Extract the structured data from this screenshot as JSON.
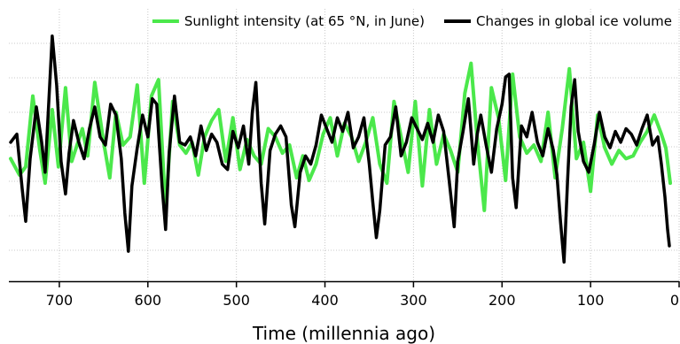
{
  "chart_data": {
    "type": "line",
    "xlabel": "Time (millennia ago)",
    "xlim": [
      757,
      0
    ],
    "ylim": [
      0,
      10
    ],
    "x_ticks": [
      700,
      600,
      500,
      400,
      300,
      200,
      100,
      0
    ],
    "x_tick_labels": [
      "700",
      "600",
      "500",
      "400",
      "300",
      "200",
      "100",
      "0"
    ],
    "grid": {
      "horizontal": true,
      "vertical": true,
      "style": "dotted"
    },
    "legend": {
      "position": "top-right"
    },
    "series": [
      {
        "name": "Sunlight intensity (at 65 °N, in June)",
        "color": "#4be84b",
        "points": [
          [
            755,
            4.5
          ],
          [
            745,
            3.9
          ],
          [
            738,
            4.2
          ],
          [
            730,
            6.8
          ],
          [
            722,
            4.8
          ],
          [
            716,
            3.6
          ],
          [
            708,
            6.3
          ],
          [
            701,
            4.2
          ],
          [
            693,
            7.1
          ],
          [
            686,
            4.4
          ],
          [
            680,
            5.0
          ],
          [
            674,
            5.6
          ],
          [
            668,
            4.6
          ],
          [
            660,
            7.3
          ],
          [
            650,
            5.1
          ],
          [
            643,
            3.8
          ],
          [
            636,
            6.2
          ],
          [
            628,
            5.0
          ],
          [
            620,
            5.3
          ],
          [
            612,
            7.2
          ],
          [
            604,
            3.6
          ],
          [
            596,
            6.8
          ],
          [
            588,
            7.4
          ],
          [
            580,
            2.6
          ],
          [
            572,
            6.6
          ],
          [
            564,
            5.0
          ],
          [
            557,
            4.7
          ],
          [
            550,
            5.1
          ],
          [
            543,
            3.9
          ],
          [
            536,
            5.3
          ],
          [
            528,
            5.9
          ],
          [
            520,
            6.3
          ],
          [
            512,
            4.4
          ],
          [
            504,
            6.0
          ],
          [
            496,
            4.1
          ],
          [
            488,
            5.2
          ],
          [
            480,
            4.6
          ],
          [
            472,
            4.3
          ],
          [
            464,
            5.6
          ],
          [
            456,
            5.3
          ],
          [
            448,
            4.7
          ],
          [
            440,
            5.0
          ],
          [
            432,
            3.8
          ],
          [
            425,
            4.6
          ],
          [
            418,
            3.7
          ],
          [
            410,
            4.3
          ],
          [
            402,
            5.4
          ],
          [
            394,
            6.0
          ],
          [
            386,
            4.6
          ],
          [
            378,
            5.8
          ],
          [
            370,
            5.3
          ],
          [
            362,
            4.4
          ],
          [
            354,
            5.1
          ],
          [
            346,
            6.0
          ],
          [
            338,
            4.3
          ],
          [
            330,
            3.6
          ],
          [
            322,
            6.6
          ],
          [
            314,
            5.3
          ],
          [
            306,
            4.0
          ],
          [
            298,
            6.6
          ],
          [
            290,
            3.5
          ],
          [
            282,
            6.3
          ],
          [
            274,
            4.3
          ],
          [
            266,
            5.4
          ],
          [
            258,
            4.8
          ],
          [
            250,
            4.0
          ],
          [
            242,
            6.9
          ],
          [
            235,
            8.0
          ],
          [
            228,
            5.2
          ],
          [
            220,
            2.6
          ],
          [
            212,
            7.1
          ],
          [
            204,
            6.0
          ],
          [
            196,
            3.7
          ],
          [
            188,
            7.6
          ],
          [
            180,
            5.3
          ],
          [
            172,
            4.7
          ],
          [
            164,
            5.0
          ],
          [
            156,
            4.4
          ],
          [
            148,
            6.2
          ],
          [
            140,
            3.8
          ],
          [
            132,
            5.6
          ],
          [
            124,
            7.8
          ],
          [
            116,
            4.5
          ],
          [
            108,
            5.1
          ],
          [
            100,
            3.3
          ],
          [
            92,
            6.1
          ],
          [
            84,
            4.9
          ],
          [
            76,
            4.3
          ],
          [
            68,
            4.8
          ],
          [
            60,
            4.5
          ],
          [
            52,
            4.6
          ],
          [
            44,
            5.1
          ],
          [
            36,
            5.5
          ],
          [
            28,
            6.1
          ],
          [
            20,
            5.4
          ],
          [
            15,
            4.9
          ],
          [
            10,
            3.6
          ]
        ]
      },
      {
        "name": "Changes in global ice volume",
        "color": "#000000",
        "points": [
          [
            755,
            5.1
          ],
          [
            748,
            5.4
          ],
          [
            742,
            3.4
          ],
          [
            738,
            2.2
          ],
          [
            733,
            4.5
          ],
          [
            726,
            6.4
          ],
          [
            720,
            5.1
          ],
          [
            716,
            4.0
          ],
          [
            712,
            6.5
          ],
          [
            708,
            9.0
          ],
          [
            703,
            7.2
          ],
          [
            698,
            4.4
          ],
          [
            693,
            3.2
          ],
          [
            689,
            4.7
          ],
          [
            684,
            5.9
          ],
          [
            678,
            5.1
          ],
          [
            672,
            4.5
          ],
          [
            666,
            5.6
          ],
          [
            660,
            6.4
          ],
          [
            654,
            5.3
          ],
          [
            648,
            5.0
          ],
          [
            642,
            6.5
          ],
          [
            636,
            6.1
          ],
          [
            630,
            4.5
          ],
          [
            626,
            2.5
          ],
          [
            622,
            1.1
          ],
          [
            618,
            3.5
          ],
          [
            612,
            4.9
          ],
          [
            606,
            6.1
          ],
          [
            600,
            5.3
          ],
          [
            595,
            6.7
          ],
          [
            590,
            6.5
          ],
          [
            584,
            3.5
          ],
          [
            580,
            1.9
          ],
          [
            576,
            4.7
          ],
          [
            570,
            6.8
          ],
          [
            564,
            5.1
          ],
          [
            558,
            5.0
          ],
          [
            552,
            5.3
          ],
          [
            546,
            4.6
          ],
          [
            540,
            5.7
          ],
          [
            534,
            4.8
          ],
          [
            528,
            5.4
          ],
          [
            522,
            5.1
          ],
          [
            516,
            4.3
          ],
          [
            510,
            4.1
          ],
          [
            504,
            5.5
          ],
          [
            498,
            4.9
          ],
          [
            492,
            5.7
          ],
          [
            486,
            4.3
          ],
          [
            482,
            6.2
          ],
          [
            478,
            7.3
          ],
          [
            472,
            3.6
          ],
          [
            468,
            2.1
          ],
          [
            462,
            4.8
          ],
          [
            456,
            5.4
          ],
          [
            450,
            5.7
          ],
          [
            444,
            5.3
          ],
          [
            438,
            2.8
          ],
          [
            434,
            2.0
          ],
          [
            428,
            4.0
          ],
          [
            422,
            4.6
          ],
          [
            416,
            4.3
          ],
          [
            410,
            5.0
          ],
          [
            404,
            6.1
          ],
          [
            398,
            5.6
          ],
          [
            392,
            5.1
          ],
          [
            386,
            6.0
          ],
          [
            380,
            5.5
          ],
          [
            374,
            6.2
          ],
          [
            368,
            4.9
          ],
          [
            362,
            5.3
          ],
          [
            356,
            6.0
          ],
          [
            350,
            4.3
          ],
          [
            346,
            2.9
          ],
          [
            342,
            1.6
          ],
          [
            338,
            2.6
          ],
          [
            332,
            5.0
          ],
          [
            326,
            5.3
          ],
          [
            320,
            6.4
          ],
          [
            314,
            4.6
          ],
          [
            308,
            5.1
          ],
          [
            302,
            6.0
          ],
          [
            296,
            5.6
          ],
          [
            290,
            5.2
          ],
          [
            284,
            5.8
          ],
          [
            278,
            5.1
          ],
          [
            272,
            6.1
          ],
          [
            266,
            5.5
          ],
          [
            260,
            3.8
          ],
          [
            254,
            2.0
          ],
          [
            250,
            4.4
          ],
          [
            244,
            5.5
          ],
          [
            238,
            6.7
          ],
          [
            232,
            4.3
          ],
          [
            228,
            5.4
          ],
          [
            224,
            6.1
          ],
          [
            218,
            5.0
          ],
          [
            212,
            4.0
          ],
          [
            206,
            5.6
          ],
          [
            200,
            6.5
          ],
          [
            196,
            7.5
          ],
          [
            192,
            7.6
          ],
          [
            188,
            3.8
          ],
          [
            184,
            2.7
          ],
          [
            178,
            5.7
          ],
          [
            172,
            5.3
          ],
          [
            166,
            6.2
          ],
          [
            160,
            5.1
          ],
          [
            154,
            4.6
          ],
          [
            148,
            5.6
          ],
          [
            142,
            4.8
          ],
          [
            138,
            3.9
          ],
          [
            134,
            2.2
          ],
          [
            130,
            0.7
          ],
          [
            126,
            3.7
          ],
          [
            122,
            6.4
          ],
          [
            118,
            7.4
          ],
          [
            114,
            5.5
          ],
          [
            108,
            4.4
          ],
          [
            102,
            4.0
          ],
          [
            96,
            5.0
          ],
          [
            90,
            6.2
          ],
          [
            84,
            5.3
          ],
          [
            78,
            4.9
          ],
          [
            72,
            5.5
          ],
          [
            66,
            5.1
          ],
          [
            60,
            5.6
          ],
          [
            54,
            5.4
          ],
          [
            48,
            5.0
          ],
          [
            42,
            5.6
          ],
          [
            36,
            6.1
          ],
          [
            30,
            5.0
          ],
          [
            24,
            5.3
          ],
          [
            20,
            4.3
          ],
          [
            16,
            3.1
          ],
          [
            13,
            1.9
          ],
          [
            11,
            1.3
          ]
        ]
      }
    ]
  }
}
